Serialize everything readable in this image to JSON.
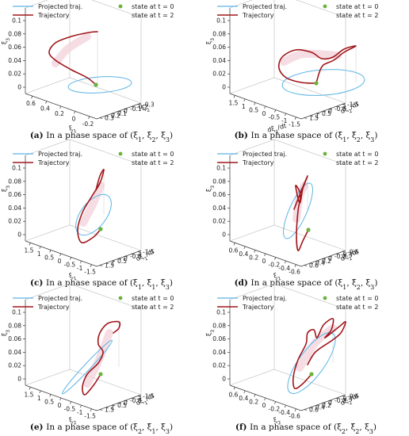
{
  "legend": {
    "projected": "Projected traj.",
    "trajectory": "Trajectory",
    "state0": "state at t = 0",
    "state2": "state at t = 2"
  },
  "colors": {
    "projected": "#5ab4e5",
    "trajectory": "#a0161b",
    "state0": "#6bb33a",
    "shadow": "#f3d4dc"
  },
  "chart_data": [
    {
      "id": "a",
      "type": "line3d",
      "caption_letter": "(a)",
      "caption_text": "In a phase space of (ξ1, ξ2, ξ3)",
      "z_label": "ξ3",
      "z_ticks": [
        "0",
        "0.02",
        "0.04",
        "0.06",
        "0.08",
        "0.1"
      ],
      "x_label": "ξ1",
      "x_ticks": [
        "0.6",
        "0.4",
        "0.2",
        "0",
        "-0.2"
      ],
      "y_label": "ξ2",
      "y_ticks": [
        "-0.3",
        "-0.2",
        "-0.1",
        "0",
        "0.1",
        "0.2",
        "0.3"
      ]
    },
    {
      "id": "b",
      "type": "line3d",
      "caption_letter": "(b)",
      "caption_text": "In a phase space of (ξ̇1, ξ̇2, ξ3)",
      "z_label": "ξ3",
      "z_ticks": [
        "0",
        "0.02",
        "0.04",
        "0.06",
        "0.08",
        "0.1"
      ],
      "x_label": "dξ1/dt",
      "x_ticks": [
        "1.5",
        "1",
        "0.5",
        "0",
        "-0.5",
        "-1",
        "-1.5"
      ],
      "y_label": "dξ2/dt",
      "y_ticks": [
        "-1.5",
        "-1",
        "-0.5",
        "0",
        "0.5",
        "1",
        "1.5"
      ]
    },
    {
      "id": "c",
      "type": "line3d",
      "caption_letter": "(c)",
      "caption_text": "In a phase space of (ξ1, ξ̇1, ξ3)",
      "z_label": "ξ3",
      "z_ticks": [
        "0",
        "0.02",
        "0.04",
        "0.06",
        "0.08",
        "0.1"
      ],
      "x_label": "ξ1",
      "x_ticks": [
        "1.5",
        "1",
        "0.5",
        "0",
        "-0.5",
        "-1",
        "-1.5"
      ],
      "y_label": "dξ1/dt",
      "y_ticks": [
        "-1.5",
        "-1",
        "-0.5",
        "0",
        "0.5",
        "1",
        "1.5"
      ]
    },
    {
      "id": "d",
      "type": "line3d",
      "caption_letter": "(d)",
      "caption_text": "In a phase space of (ξ1, ξ̇2, ξ3)",
      "z_label": "ξ3",
      "z_ticks": [
        "0",
        "0.02",
        "0.04",
        "0.06",
        "0.08",
        "0.1"
      ],
      "x_label": "ξ1",
      "x_ticks": [
        "0.6",
        "0.4",
        "0.2",
        "0",
        "-0.2",
        "-0.4",
        "-0.6"
      ],
      "y_label": "dξ2/dt",
      "y_ticks": [
        "-0.6",
        "-0.4",
        "-0.2",
        "0",
        "0.2",
        "0.4",
        "0.6"
      ]
    },
    {
      "id": "e",
      "type": "line3d",
      "caption_letter": "(e)",
      "caption_text": "In a phase space of (ξ2, ξ̇1, ξ3)",
      "z_label": "ξ3",
      "z_ticks": [
        "0",
        "0.02",
        "0.04",
        "0.06",
        "0.08",
        "0.1"
      ],
      "x_label": "ξ2",
      "x_ticks": [
        "1.5",
        "1",
        "0.5",
        "0",
        "-0.5",
        "-1",
        "-1.5"
      ],
      "y_label": "dξ1/dt",
      "y_ticks": [
        "-1.5",
        "-1",
        "-0.5",
        "0",
        "0.5",
        "1",
        "1.5"
      ]
    },
    {
      "id": "f",
      "type": "line3d",
      "caption_letter": "(f)",
      "caption_text": "In a phase space of (ξ2, ξ̇2, ξ3)",
      "z_label": "ξ3",
      "z_ticks": [
        "0",
        "0.02",
        "0.04",
        "0.06",
        "0.08",
        "0.1"
      ],
      "x_label": "ξ2",
      "x_ticks": [
        "0.6",
        "0.4",
        "0.2",
        "0",
        "-0.2",
        "-0.4",
        "-0.6"
      ],
      "y_label": "dξ2/dt",
      "y_ticks": [
        "-0.6",
        "-0.4",
        "-0.2",
        "0",
        "0.2",
        "0.4",
        "0.6"
      ]
    }
  ]
}
